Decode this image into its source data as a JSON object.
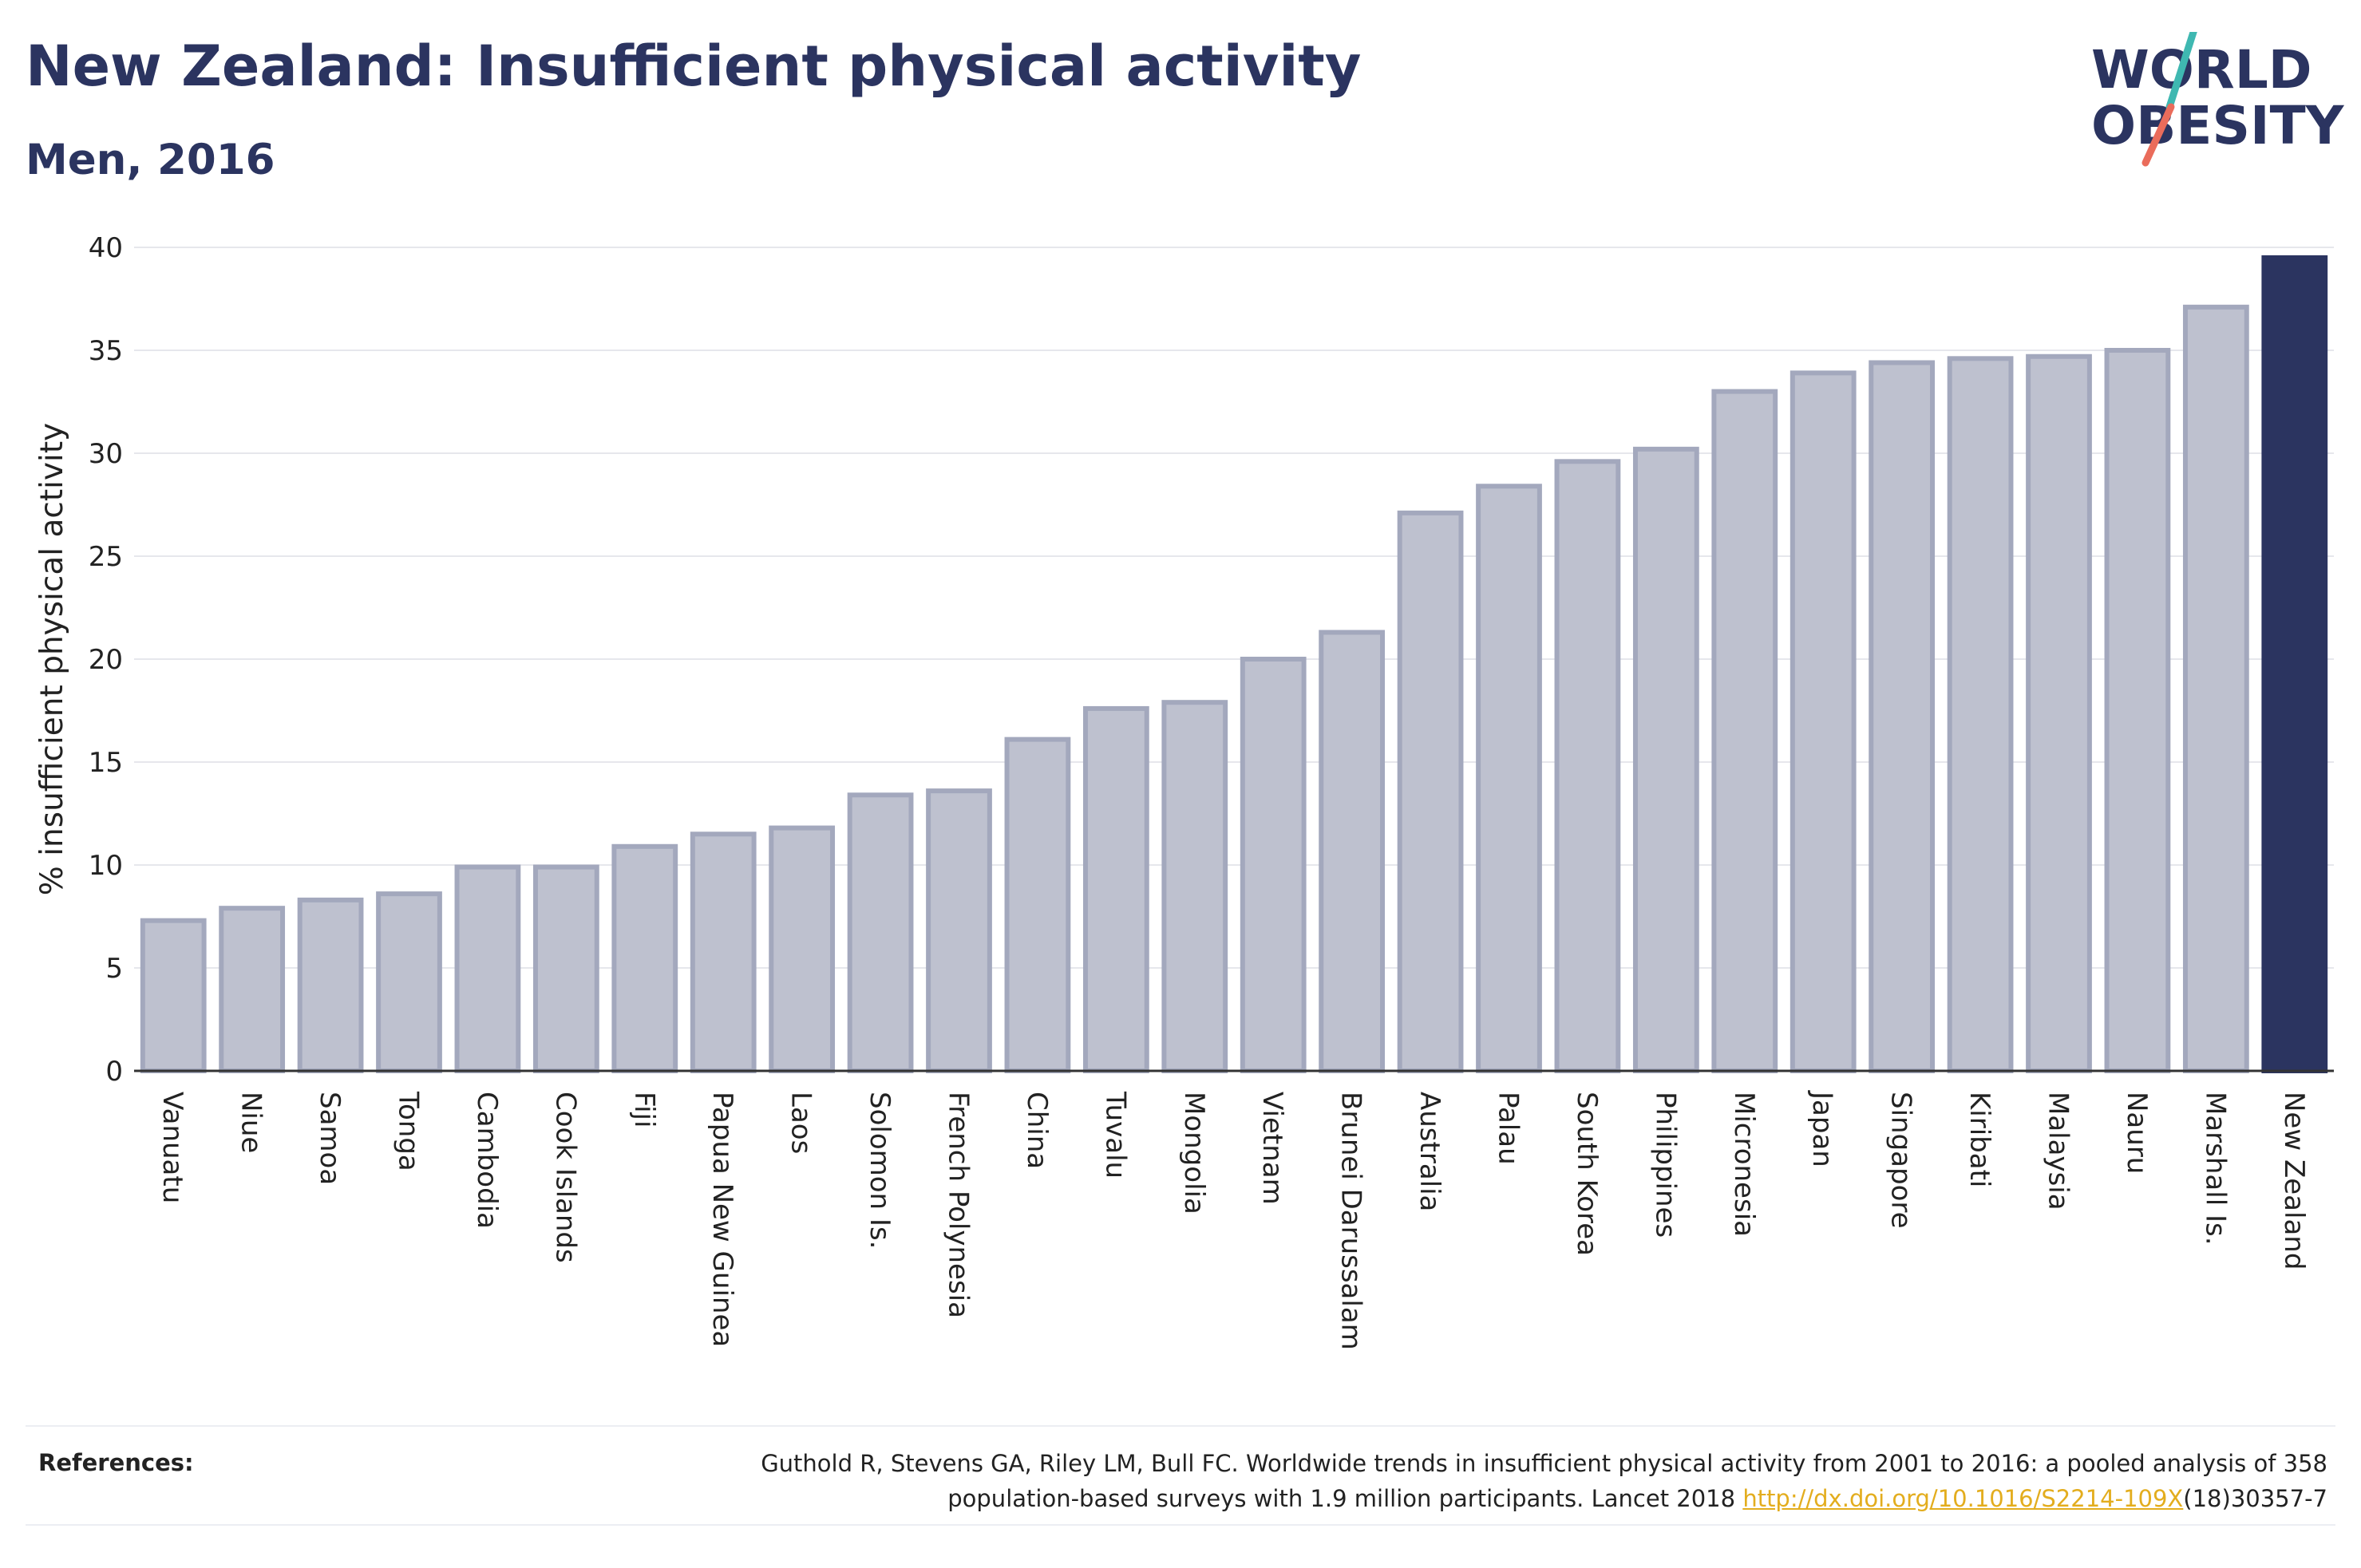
{
  "header": {
    "title": "New Zealand: Insufficient physical activity",
    "subtitle": "Men, 2016"
  },
  "logo": {
    "line1": "WORLD",
    "line2": "OBESITY",
    "text_color": "#2b3460",
    "slash_color_top": "#3fb8b1",
    "slash_color_bottom": "#ea6c5b"
  },
  "chart_data": {
    "type": "bar",
    "title": "New Zealand: Insufficient physical activity",
    "subtitle": "Men, 2016",
    "ylabel": "% insufficient physical activity",
    "xlabel": "",
    "ylim": [
      0,
      40
    ],
    "yticks": [
      0,
      5,
      10,
      15,
      20,
      25,
      30,
      35,
      40
    ],
    "grid": true,
    "highlight": "New Zealand",
    "colors": {
      "bar": "#bec1cf",
      "bar_edge": "#a3a8bd",
      "highlight": "#2b3460"
    },
    "categories": [
      "Vanuatu",
      "Niue",
      "Samoa",
      "Tonga",
      "Cambodia",
      "Cook Islands",
      "Fiji",
      "Papua New Guinea",
      "Laos",
      "Solomon Is.",
      "French Polynesia",
      "China",
      "Tuvalu",
      "Mongolia",
      "Vietnam",
      "Brunei Darussalam",
      "Australia",
      "Palau",
      "South Korea",
      "Philippines",
      "Micronesia",
      "Japan",
      "Singapore",
      "Kiribati",
      "Malaysia",
      "Nauru",
      "Marshall Is.",
      "New Zealand"
    ],
    "values": [
      7.3,
      7.9,
      8.3,
      8.6,
      9.9,
      9.9,
      10.9,
      11.5,
      11.8,
      13.4,
      13.6,
      16.1,
      17.6,
      17.9,
      20.0,
      21.3,
      27.1,
      28.4,
      29.6,
      30.2,
      33.0,
      33.9,
      34.4,
      34.6,
      34.7,
      35.0,
      37.1,
      39.5
    ]
  },
  "references": {
    "label": "References:",
    "text_line1": "Guthold R, Stevens GA, Riley LM, Bull FC. Worldwide trends in insufficient physical activity from 2001 to 2016: a pooled analysis of 358",
    "text_line2_prefix": "population-based surveys with 1.9 million participants. Lancet 2018 ",
    "link": "http://dx.doi.org/10.1016/S2214-109X",
    "text_line2_suffix": "(18)30357-7"
  }
}
